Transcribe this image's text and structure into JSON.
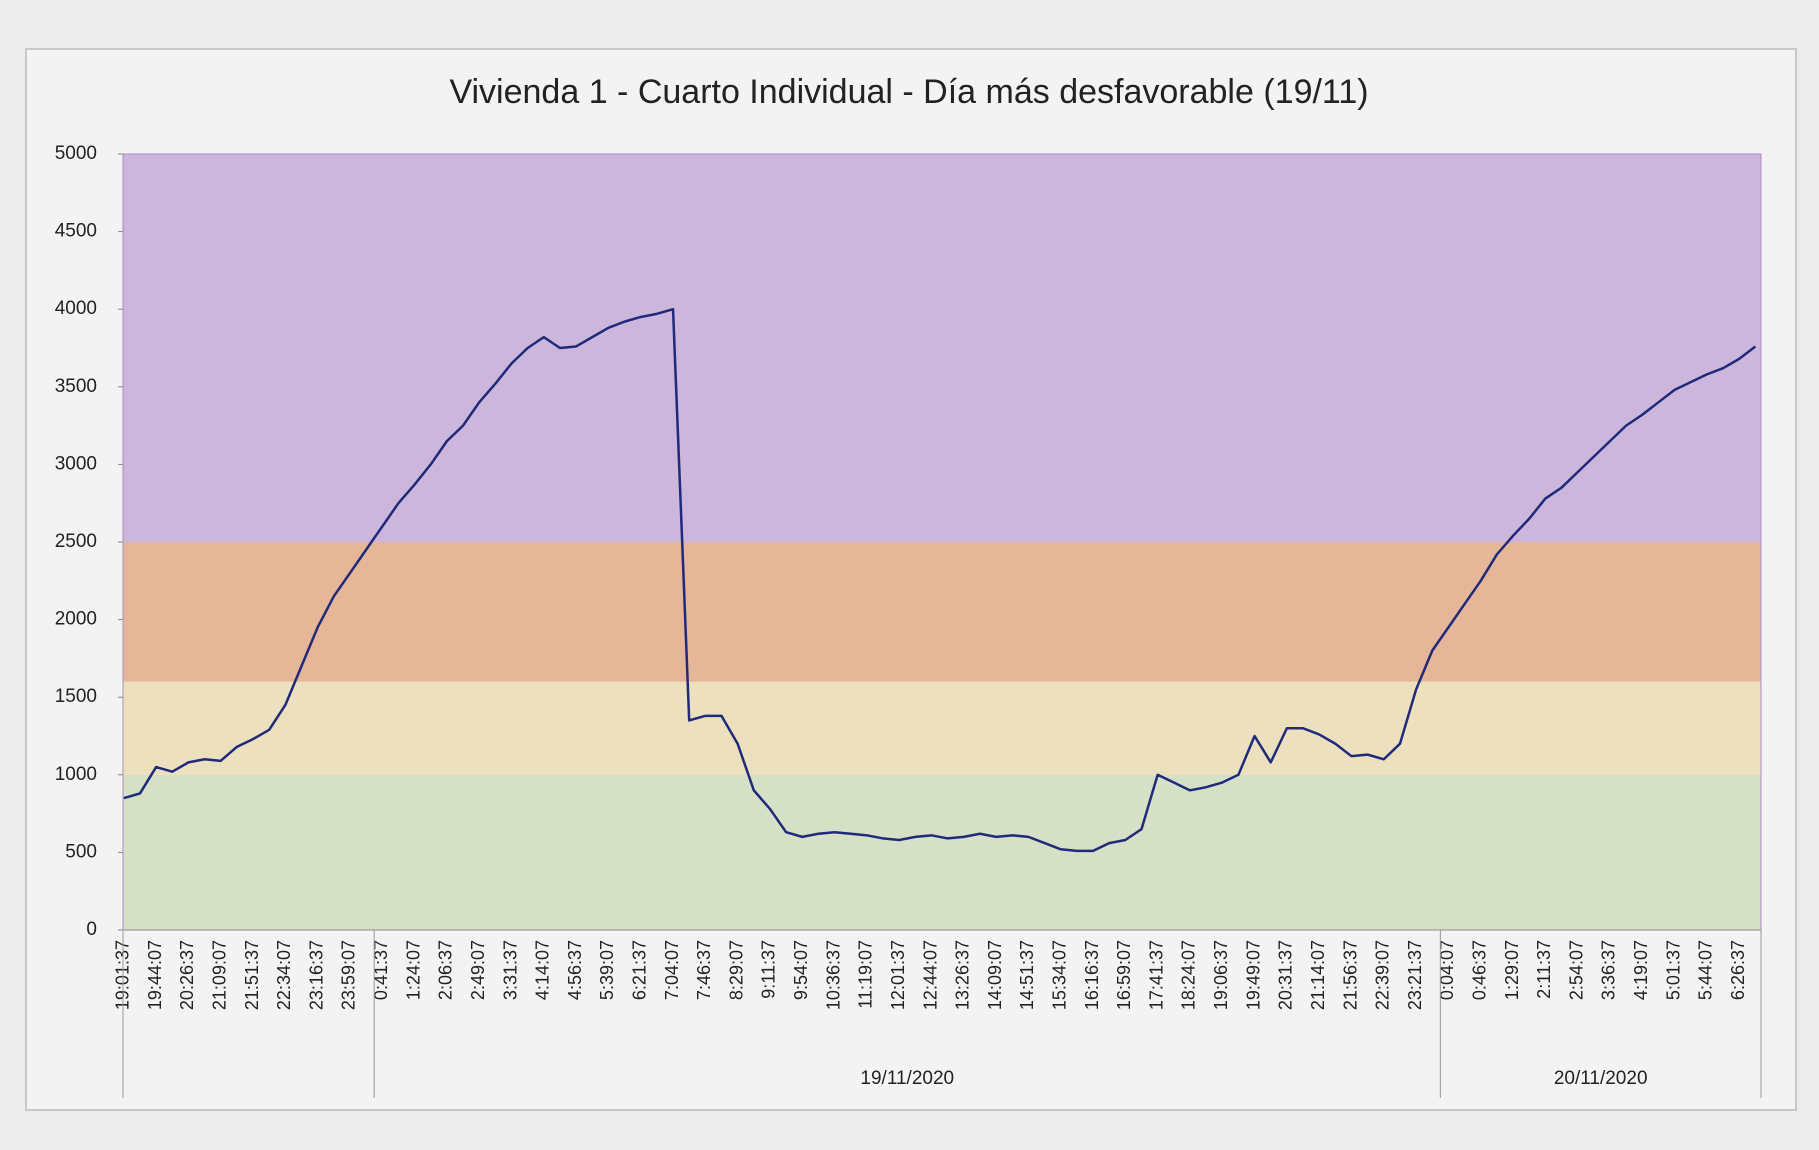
{
  "chart_data": {
    "type": "line",
    "title": "Vivienda 1 - Cuarto Individual - Día más desfavorable (19/11)",
    "category_groups": [
      {
        "label": null,
        "categories": [
          "19:01:37",
          null,
          "19:44:07",
          null,
          "20:26:37",
          null,
          "21:09:07",
          null,
          "21:51:37",
          null,
          "22:34:07",
          null,
          "23:16:37",
          null,
          "23:59:07",
          null
        ]
      },
      {
        "label": "19/11/2020",
        "categories": [
          "0:41:37",
          null,
          "1:24:07",
          null,
          "2:06:37",
          null,
          "2:49:07",
          null,
          "3:31:37",
          null,
          "4:14:07",
          null,
          "4:56:37",
          null,
          "5:39:07",
          null,
          "6:21:37",
          null,
          "7:04:07",
          null,
          "7:46:37",
          null,
          "8:29:07",
          null,
          "9:11:37",
          null,
          "9:54:07",
          null,
          "10:36:37",
          null,
          "11:19:07",
          null,
          "12:01:37",
          null,
          "12:44:07",
          null,
          "13:26:37",
          null,
          "14:09:07",
          null,
          "14:51:37",
          null,
          "15:34:07",
          null,
          "16:16:37",
          null,
          "16:59:07",
          null,
          "17:41:37",
          null,
          "18:24:07",
          null,
          "19:06:37",
          null,
          "19:49:07",
          null,
          "20:31:37",
          null,
          "21:14:07",
          null,
          "21:56:37",
          null,
          "22:39:07",
          null,
          "23:21:37",
          null
        ]
      },
      {
        "label": "20/11/2020",
        "categories": [
          "0:04:07",
          null,
          "0:46:37",
          null,
          "1:29:07",
          null,
          "2:11:37",
          null,
          "2:54:07",
          null,
          "3:36:37",
          null,
          "4:19:07",
          null,
          "5:01:37",
          null,
          "5:44:07",
          null,
          "6:26:37",
          null
        ]
      }
    ],
    "values": [
      850,
      880,
      1050,
      1020,
      1080,
      1100,
      1090,
      1180,
      1230,
      1290,
      1450,
      1700,
      1950,
      2150,
      2300,
      2450,
      2600,
      2750,
      2870,
      3000,
      3150,
      3250,
      3400,
      3520,
      3650,
      3750,
      3820,
      3750,
      3760,
      3820,
      3880,
      3920,
      3950,
      3970,
      4000,
      1350,
      1380,
      1380,
      1200,
      900,
      780,
      630,
      600,
      620,
      630,
      620,
      610,
      590,
      580,
      600,
      610,
      590,
      600,
      620,
      600,
      610,
      600,
      560,
      520,
      510,
      510,
      560,
      580,
      650,
      1000,
      950,
      900,
      920,
      950,
      1000,
      1250,
      1080,
      1300,
      1300,
      1260,
      1200,
      1120,
      1130,
      1100,
      1200,
      1550,
      1800,
      1950,
      2100,
      2250,
      2420,
      2540,
      2650,
      2780,
      2850,
      2950,
      3050,
      3150,
      3250,
      3320,
      3400,
      3480,
      3530,
      3580,
      3620,
      3680,
      3760
    ],
    "color": "#1f2a7a",
    "ylim": [
      0,
      5000
    ],
    "yticks": [
      0,
      500,
      1000,
      1500,
      2000,
      2500,
      3000,
      3500,
      4000,
      4500,
      5000
    ],
    "bands": [
      {
        "from": 0,
        "to": 1000,
        "color": "#d5e0c6"
      },
      {
        "from": 1000,
        "to": 1600,
        "color": "#ece0bf"
      },
      {
        "from": 1600,
        "to": 2500,
        "color": "#e5b697"
      },
      {
        "from": 2500,
        "to": 5000,
        "color": "#ccb6dc"
      }
    ]
  }
}
